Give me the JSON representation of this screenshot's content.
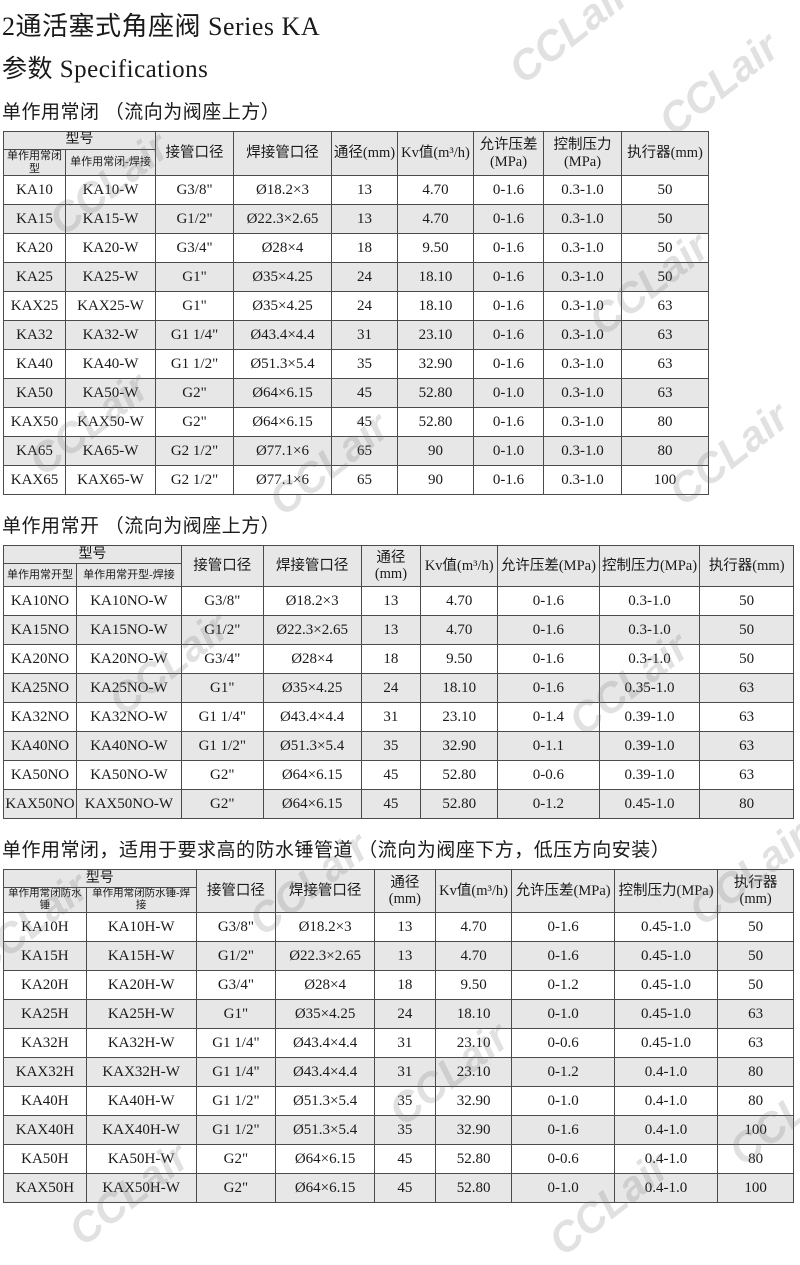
{
  "page": {
    "title": "2通活塞式角座阀  Series KA",
    "subtitle": "参数  Specifications"
  },
  "watermark": {
    "text": "CCLair"
  },
  "tables": [
    {
      "section_title": "单作用常闭 （流向为阀座上方）",
      "header": {
        "model_group": "型号",
        "col_model": "单作用常闭型",
        "col_model_weld": "单作用常闭-焊接",
        "col_pipe": "接管口径",
        "col_weld_pipe": "焊接管口径",
        "col_dn": "通径(mm)",
        "col_kv": "Kv值(m³/h)",
        "col_dp": "允许压差\n(MPa)",
        "col_cp": "控制压力\n(MPa)",
        "col_act": "执行器(mm)"
      },
      "rows": [
        [
          "KA10",
          "KA10-W",
          "G3/8\"",
          "Ø18.2×3",
          "13",
          "4.70",
          "0-1.6",
          "0.3-1.0",
          "50"
        ],
        [
          "KA15",
          "KA15-W",
          "G1/2\"",
          "Ø22.3×2.65",
          "13",
          "4.70",
          "0-1.6",
          "0.3-1.0",
          "50"
        ],
        [
          "KA20",
          "KA20-W",
          "G3/4\"",
          "Ø28×4",
          "18",
          "9.50",
          "0-1.6",
          "0.3-1.0",
          "50"
        ],
        [
          "KA25",
          "KA25-W",
          "G1\"",
          "Ø35×4.25",
          "24",
          "18.10",
          "0-1.6",
          "0.3-1.0",
          "50"
        ],
        [
          "KAX25",
          "KAX25-W",
          "G1\"",
          "Ø35×4.25",
          "24",
          "18.10",
          "0-1.6",
          "0.3-1.0",
          "63"
        ],
        [
          "KA32",
          "KA32-W",
          "G1 1/4\"",
          "Ø43.4×4.4",
          "31",
          "23.10",
          "0-1.6",
          "0.3-1.0",
          "63"
        ],
        [
          "KA40",
          "KA40-W",
          "G1 1/2\"",
          "Ø51.3×5.4",
          "35",
          "32.90",
          "0-1.6",
          "0.3-1.0",
          "63"
        ],
        [
          "KA50",
          "KA50-W",
          "G2\"",
          "Ø64×6.15",
          "45",
          "52.80",
          "0-1.0",
          "0.3-1.0",
          "63"
        ],
        [
          "KAX50",
          "KAX50-W",
          "G2\"",
          "Ø64×6.15",
          "45",
          "52.80",
          "0-1.6",
          "0.3-1.0",
          "80"
        ],
        [
          "KA65",
          "KA65-W",
          "G2 1/2\"",
          "Ø77.1×6",
          "65",
          "90",
          "0-1.0",
          "0.3-1.0",
          "80"
        ],
        [
          "KAX65",
          "KAX65-W",
          "G2 1/2\"",
          "Ø77.1×6",
          "65",
          "90",
          "0-1.6",
          "0.3-1.0",
          "100"
        ]
      ]
    },
    {
      "section_title": "单作用常开 （流向为阀座上方）",
      "header": {
        "model_group": "型号",
        "col_model": "单作用常开型",
        "col_model_weld": "单作用常开型-焊接",
        "col_pipe": "接管口径",
        "col_weld_pipe": "焊接管口径",
        "col_dn": "通径(mm)",
        "col_kv": "Kv值(m³/h)",
        "col_dp": "允许压差(MPa)",
        "col_cp": "控制压力(MPa)",
        "col_act": "执行器(mm)"
      },
      "rows": [
        [
          "KA10NO",
          "KA10NO-W",
          "G3/8\"",
          "Ø18.2×3",
          "13",
          "4.70",
          "0-1.6",
          "0.3-1.0",
          "50"
        ],
        [
          "KA15NO",
          "KA15NO-W",
          "G1/2\"",
          "Ø22.3×2.65",
          "13",
          "4.70",
          "0-1.6",
          "0.3-1.0",
          "50"
        ],
        [
          "KA20NO",
          "KA20NO-W",
          "G3/4\"",
          "Ø28×4",
          "18",
          "9.50",
          "0-1.6",
          "0.3-1.0",
          "50"
        ],
        [
          "KA25NO",
          "KA25NO-W",
          "G1\"",
          "Ø35×4.25",
          "24",
          "18.10",
          "0-1.6",
          "0.35-1.0",
          "63"
        ],
        [
          "KA32NO",
          "KA32NO-W",
          "G1 1/4\"",
          "Ø43.4×4.4",
          "31",
          "23.10",
          "0-1.4",
          "0.39-1.0",
          "63"
        ],
        [
          "KA40NO",
          "KA40NO-W",
          "G1 1/2\"",
          "Ø51.3×5.4",
          "35",
          "32.90",
          "0-1.1",
          "0.39-1.0",
          "63"
        ],
        [
          "KA50NO",
          "KA50NO-W",
          "G2\"",
          "Ø64×6.15",
          "45",
          "52.80",
          "0-0.6",
          "0.39-1.0",
          "63"
        ],
        [
          "KAX50NO",
          "KAX50NO-W",
          "G2\"",
          "Ø64×6.15",
          "45",
          "52.80",
          "0-1.2",
          "0.45-1.0",
          "80"
        ]
      ]
    },
    {
      "section_title": "单作用常闭，适用于要求高的防水锤管道 （流向为阀座下方，低压方向安装）",
      "header": {
        "model_group": "型号",
        "col_model": "单作用常闭防水锤",
        "col_model_weld": "单作用常闭防水锤-焊接",
        "col_pipe": "接管口径",
        "col_weld_pipe": "焊接管口径",
        "col_dn": "通径(mm)",
        "col_kv": "Kv值(m³/h)",
        "col_dp": "允许压差(MPa)",
        "col_cp": "控制压力(MPa)",
        "col_act": "执行器(mm)"
      },
      "rows": [
        [
          "KA10H",
          "KA10H-W",
          "G3/8\"",
          "Ø18.2×3",
          "13",
          "4.70",
          "0-1.6",
          "0.45-1.0",
          "50"
        ],
        [
          "KA15H",
          "KA15H-W",
          "G1/2\"",
          "Ø22.3×2.65",
          "13",
          "4.70",
          "0-1.6",
          "0.45-1.0",
          "50"
        ],
        [
          "KA20H",
          "KA20H-W",
          "G3/4\"",
          "Ø28×4",
          "18",
          "9.50",
          "0-1.2",
          "0.45-1.0",
          "50"
        ],
        [
          "KA25H",
          "KA25H-W",
          "G1\"",
          "Ø35×4.25",
          "24",
          "18.10",
          "0-1.0",
          "0.45-1.0",
          "63"
        ],
        [
          "KA32H",
          "KA32H-W",
          "G1 1/4\"",
          "Ø43.4×4.4",
          "31",
          "23.10",
          "0-0.6",
          "0.45-1.0",
          "63"
        ],
        [
          "KAX32H",
          "KAX32H-W",
          "G1 1/4\"",
          "Ø43.4×4.4",
          "31",
          "23.10",
          "0-1.2",
          "0.4-1.0",
          "80"
        ],
        [
          "KA40H",
          "KA40H-W",
          "G1 1/2\"",
          "Ø51.3×5.4",
          "35",
          "32.90",
          "0-1.0",
          "0.4-1.0",
          "80"
        ],
        [
          "KAX40H",
          "KAX40H-W",
          "G1 1/2\"",
          "Ø51.3×5.4",
          "35",
          "32.90",
          "0-1.6",
          "0.4-1.0",
          "100"
        ],
        [
          "KA50H",
          "KA50H-W",
          "G2\"",
          "Ø64×6.15",
          "45",
          "52.80",
          "0-0.6",
          "0.4-1.0",
          "80"
        ],
        [
          "KAX50H",
          "KAX50H-W",
          "G2\"",
          "Ø64×6.15",
          "45",
          "52.80",
          "0-1.0",
          "0.4-1.0",
          "100"
        ]
      ]
    }
  ]
}
